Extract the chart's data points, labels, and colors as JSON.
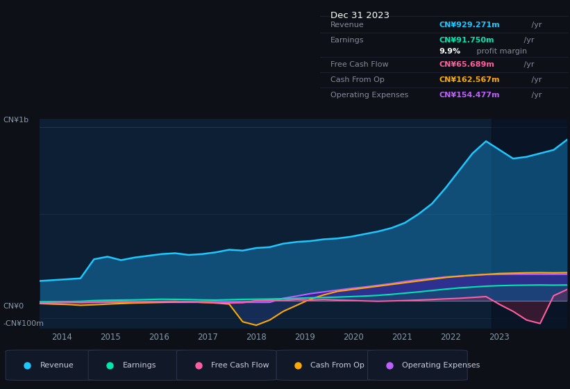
{
  "bg_color": "#0d1117",
  "chart_bg_left": "#0d1f35",
  "chart_bg_right": "#0a1520",
  "title": "Dec 31 2023",
  "info_box_rows": [
    {
      "label": "Revenue",
      "value": "CN¥929.271m",
      "value_color": "#1ec8ff",
      "suffix": " /yr"
    },
    {
      "label": "Earnings",
      "value": "CN¥91.750m",
      "value_color": "#00e5b0",
      "suffix": " /yr"
    },
    {
      "label": "",
      "value_bold": "9.9%",
      "value_color": "#ffffff",
      "suffix": " profit margin"
    },
    {
      "label": "Free Cash Flow",
      "value": "CN¥65.689m",
      "value_color": "#ff5fa0",
      "suffix": " /yr"
    },
    {
      "label": "Cash From Op",
      "value": "CN¥162.567m",
      "value_color": "#ffaa00",
      "suffix": " /yr"
    },
    {
      "label": "Operating Expenses",
      "value": "CN¥154.477m",
      "value_color": "#bf5fff",
      "suffix": " /yr"
    }
  ],
  "ylabel_top": "CN¥1b",
  "ylabel_zero": "CN¥0",
  "ylabel_neg": "-CN¥100m",
  "x_ticks": [
    2014,
    2015,
    2016,
    2017,
    2018,
    2019,
    2020,
    2021,
    2022,
    2023
  ],
  "legend": [
    {
      "label": "Revenue",
      "color": "#1ec8ff"
    },
    {
      "label": "Earnings",
      "color": "#00e5b0"
    },
    {
      "label": "Free Cash Flow",
      "color": "#ff5fa0"
    },
    {
      "label": "Cash From Op",
      "color": "#ffaa00"
    },
    {
      "label": "Operating Expenses",
      "color": "#bf5fff"
    }
  ],
  "revenue": [
    115,
    120,
    125,
    130,
    240,
    255,
    235,
    250,
    260,
    270,
    275,
    265,
    270,
    280,
    295,
    290,
    305,
    310,
    330,
    340,
    345,
    355,
    360,
    370,
    385,
    400,
    420,
    450,
    500,
    560,
    650,
    750,
    850,
    920,
    870,
    820,
    830,
    850,
    870,
    929
  ],
  "earnings": [
    -8,
    -6,
    -4,
    -2,
    2,
    4,
    5,
    6,
    8,
    10,
    9,
    8,
    6,
    5,
    7,
    9,
    10,
    11,
    13,
    15,
    18,
    20,
    22,
    25,
    28,
    32,
    38,
    45,
    52,
    60,
    68,
    75,
    80,
    85,
    88,
    90,
    91,
    92,
    91,
    92
  ],
  "free_cash_flow": [
    -12,
    -10,
    -8,
    -10,
    -8,
    -6,
    -5,
    -8,
    -5,
    -3,
    -2,
    -5,
    -8,
    -10,
    -12,
    -10,
    2,
    5,
    3,
    8,
    5,
    8,
    5,
    3,
    0,
    -2,
    0,
    2,
    5,
    8,
    12,
    15,
    20,
    25,
    -20,
    -60,
    -110,
    -130,
    30,
    66
  ],
  "cash_from_op": [
    -15,
    -18,
    -20,
    -25,
    -22,
    -18,
    -15,
    -12,
    -10,
    -8,
    -6,
    -5,
    -8,
    -12,
    -18,
    -120,
    -140,
    -110,
    -60,
    -25,
    10,
    35,
    55,
    65,
    75,
    85,
    95,
    105,
    115,
    125,
    135,
    142,
    148,
    153,
    158,
    160,
    162,
    163,
    162,
    163
  ],
  "operating_expenses": [
    -8,
    -8,
    -8,
    -8,
    -8,
    -8,
    -8,
    -8,
    -8,
    -8,
    -8,
    -8,
    -8,
    -8,
    -8,
    -8,
    -8,
    -8,
    15,
    28,
    42,
    52,
    62,
    72,
    80,
    90,
    100,
    112,
    122,
    130,
    138,
    143,
    148,
    152,
    153,
    154,
    154,
    154,
    154,
    154
  ],
  "separator_x": 2022.85,
  "ylim": [
    -160,
    1050
  ]
}
